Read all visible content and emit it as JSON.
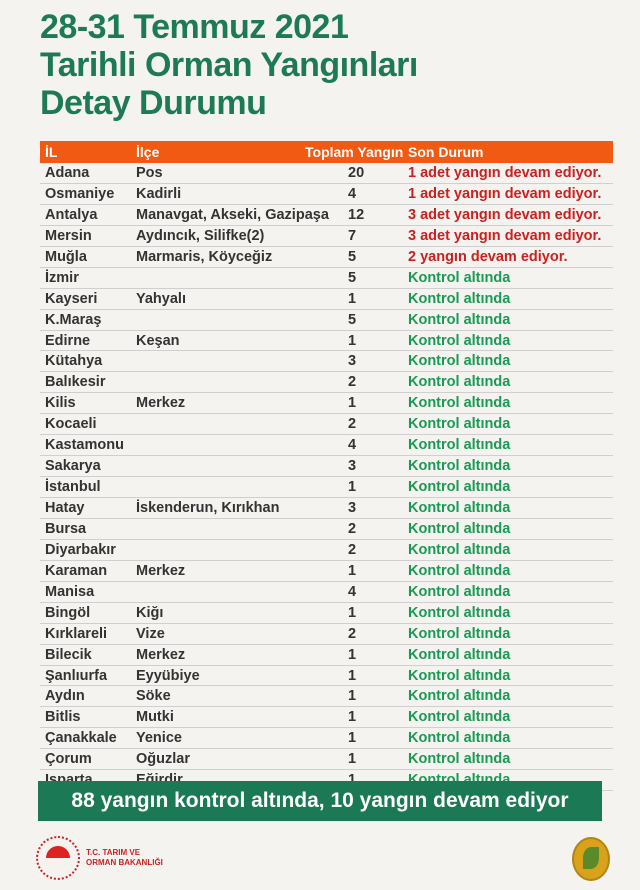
{
  "title_lines": [
    "28-31 Temmuz 2021",
    "Tarihli Orman Yangınları",
    "Detay Durumu"
  ],
  "colors": {
    "title": "#1d7a55",
    "header": "#f05a12",
    "ongoing": "#cc1f1f",
    "controlled": "#1a9a55",
    "banner": "#1b7a55"
  },
  "table": {
    "headers": [
      "İL",
      "İlçe",
      "Toplam Yangın",
      "Son Durum"
    ],
    "rows": [
      {
        "il": "Adana",
        "ilce": "Pos",
        "toplam": "20",
        "durum": "1 adet yangın devam ediyor.",
        "status": "ongoing"
      },
      {
        "il": "Osmaniye",
        "ilce": "Kadirli",
        "toplam": "4",
        "durum": "1 adet yangın devam ediyor.",
        "status": "ongoing"
      },
      {
        "il": "Antalya",
        "ilce": "Manavgat, Akseki, Gazipaşa",
        "toplam": "12",
        "durum": "3 adet yangın devam ediyor.",
        "status": "ongoing"
      },
      {
        "il": "Mersin",
        "ilce": "Aydıncık, Silifke(2)",
        "toplam": "7",
        "durum": "3 adet yangın devam ediyor.",
        "status": "ongoing"
      },
      {
        "il": "Muğla",
        "ilce": "Marmaris, Köyceğiz",
        "toplam": "5",
        "durum": "2 yangın devam ediyor.",
        "status": "ongoing"
      },
      {
        "il": "İzmir",
        "ilce": "",
        "toplam": "5",
        "durum": "Kontrol altında",
        "status": "controlled"
      },
      {
        "il": "Kayseri",
        "ilce": "Yahyalı",
        "toplam": "1",
        "durum": "Kontrol altında",
        "status": "controlled"
      },
      {
        "il": "K.Maraş",
        "ilce": "",
        "toplam": "5",
        "durum": "Kontrol altında",
        "status": "controlled"
      },
      {
        "il": "Edirne",
        "ilce": "Keşan",
        "toplam": "1",
        "durum": "Kontrol altında",
        "status": "controlled"
      },
      {
        "il": "Kütahya",
        "ilce": "",
        "toplam": "3",
        "durum": "Kontrol altında",
        "status": "controlled"
      },
      {
        "il": "Balıkesir",
        "ilce": "",
        "toplam": "2",
        "durum": "Kontrol altında",
        "status": "controlled"
      },
      {
        "il": "Kilis",
        "ilce": "Merkez",
        "toplam": "1",
        "durum": "Kontrol altında",
        "status": "controlled"
      },
      {
        "il": "Kocaeli",
        "ilce": "",
        "toplam": "2",
        "durum": "Kontrol altında",
        "status": "controlled"
      },
      {
        "il": "Kastamonu",
        "ilce": "",
        "toplam": "4",
        "durum": "Kontrol altında",
        "status": "controlled"
      },
      {
        "il": "Sakarya",
        "ilce": "",
        "toplam": "3",
        "durum": "Kontrol altında",
        "status": "controlled"
      },
      {
        "il": "İstanbul",
        "ilce": "",
        "toplam": "1",
        "durum": "Kontrol altında",
        "status": "controlled"
      },
      {
        "il": "Hatay",
        "ilce": "İskenderun, Kırıkhan",
        "toplam": "3",
        "durum": "Kontrol altında",
        "status": "controlled"
      },
      {
        "il": "Bursa",
        "ilce": "",
        "toplam": "2",
        "durum": "Kontrol altında",
        "status": "controlled"
      },
      {
        "il": "Diyarbakır",
        "ilce": "",
        "toplam": "2",
        "durum": "Kontrol altında",
        "status": "controlled"
      },
      {
        "il": "Karaman",
        "ilce": "Merkez",
        "toplam": "1",
        "durum": "Kontrol altında",
        "status": "controlled"
      },
      {
        "il": "Manisa",
        "ilce": "",
        "toplam": "4",
        "durum": "Kontrol altında",
        "status": "controlled"
      },
      {
        "il": "Bingöl",
        "ilce": "Kiğı",
        "toplam": "1",
        "durum": "Kontrol altında",
        "status": "controlled"
      },
      {
        "il": "Kırklareli",
        "ilce": "Vize",
        "toplam": "2",
        "durum": "Kontrol altında",
        "status": "controlled"
      },
      {
        "il": "Bilecik",
        "ilce": "Merkez",
        "toplam": "1",
        "durum": "Kontrol altında",
        "status": "controlled"
      },
      {
        "il": "Şanlıurfa",
        "ilce": "Eyyübiye",
        "toplam": "1",
        "durum": "Kontrol altında",
        "status": "controlled"
      },
      {
        "il": "Aydın",
        "ilce": "Söke",
        "toplam": "1",
        "durum": "Kontrol altında",
        "status": "controlled"
      },
      {
        "il": "Bitlis",
        "ilce": "Mutki",
        "toplam": "1",
        "durum": "Kontrol altında",
        "status": "controlled"
      },
      {
        "il": "Çanakkale",
        "ilce": "Yenice",
        "toplam": "1",
        "durum": "Kontrol altında",
        "status": "controlled"
      },
      {
        "il": "Çorum",
        "ilce": "Oğuzlar",
        "toplam": "1",
        "durum": "Kontrol altında",
        "status": "controlled"
      },
      {
        "il": "Isparta",
        "ilce": "Eğirdir",
        "toplam": "1",
        "durum": "Kontrol altında",
        "status": "controlled"
      }
    ]
  },
  "banner": "88 yangın kontrol altında, 10 yangın devam ediyor",
  "footer": {
    "ministry_line1": "T.C. TARIM VE",
    "ministry_line2": "ORMAN BAKANLIĞI"
  }
}
